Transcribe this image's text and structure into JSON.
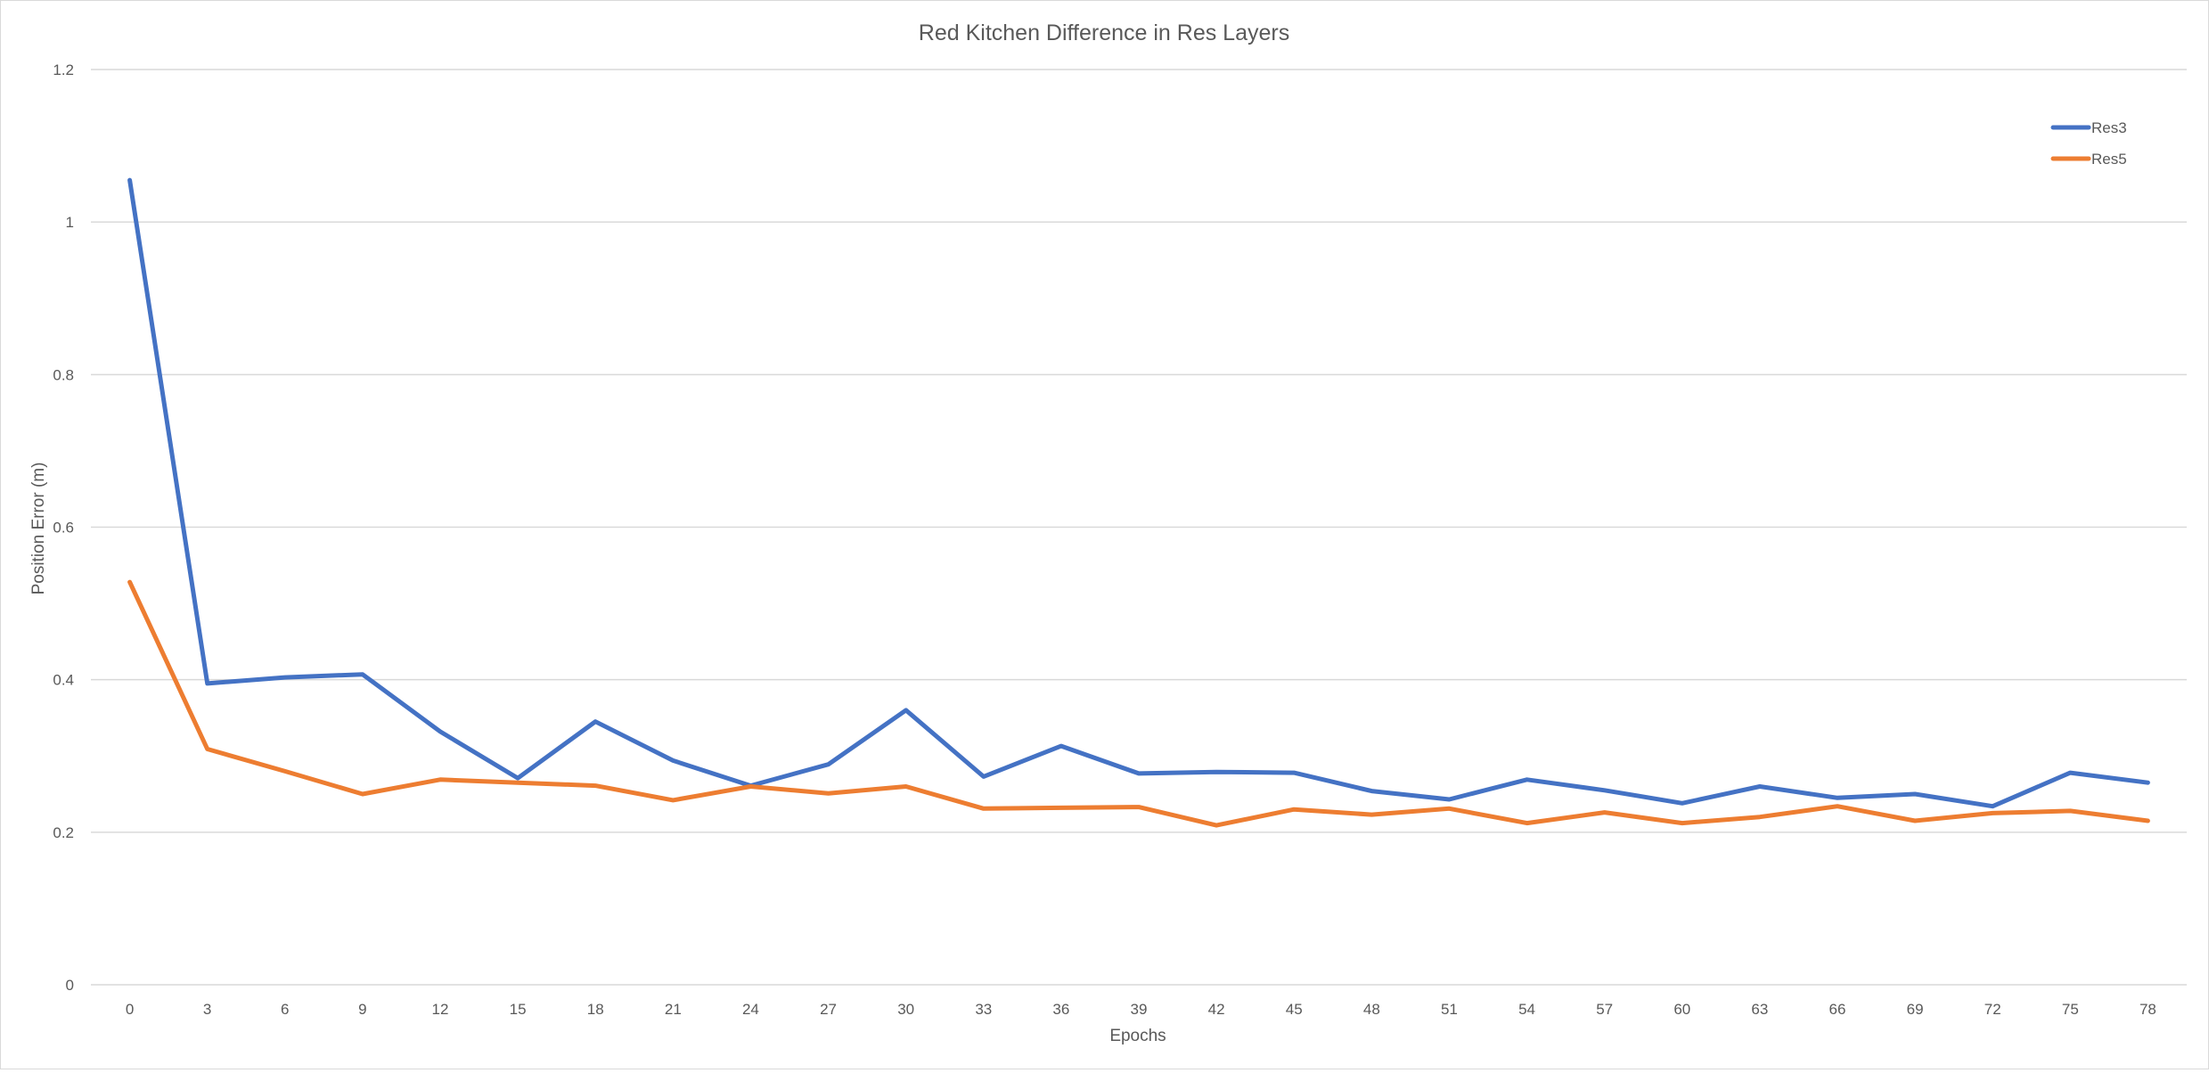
{
  "chart_data": {
    "type": "line",
    "title": "Red Kitchen Difference in Res Layers",
    "xlabel": "Epochs",
    "ylabel": "Position Error (m)",
    "ylim": [
      0,
      1.2
    ],
    "yticks": [
      "0",
      "0.2",
      "0.4",
      "0.6",
      "0.8",
      "1",
      "1.2"
    ],
    "x": [
      0,
      3,
      6,
      9,
      12,
      15,
      18,
      21,
      24,
      27,
      30,
      33,
      36,
      39,
      42,
      45,
      48,
      51,
      54,
      57,
      60,
      63,
      66,
      69,
      72,
      75,
      78
    ],
    "grid": true,
    "legend_position": "top-right",
    "series": [
      {
        "name": "Res3",
        "color": "#4472c4",
        "values": [
          1.055,
          0.395,
          0.403,
          0.407,
          0.332,
          0.271,
          0.345,
          0.294,
          0.261,
          0.289,
          0.36,
          0.273,
          0.313,
          0.277,
          0.279,
          0.278,
          0.254,
          0.243,
          0.269,
          0.255,
          0.238,
          0.26,
          0.245,
          0.25,
          0.234,
          0.278,
          0.265
        ]
      },
      {
        "name": "Res5",
        "color": "#ed7d31",
        "values": [
          0.528,
          0.309,
          0.28,
          0.25,
          0.269,
          0.265,
          0.261,
          0.242,
          0.26,
          0.251,
          0.26,
          0.231,
          0.232,
          0.233,
          0.209,
          0.23,
          0.223,
          0.231,
          0.212,
          0.226,
          0.212,
          0.22,
          0.234,
          0.215,
          0.225,
          0.228,
          0.215
        ]
      }
    ]
  }
}
